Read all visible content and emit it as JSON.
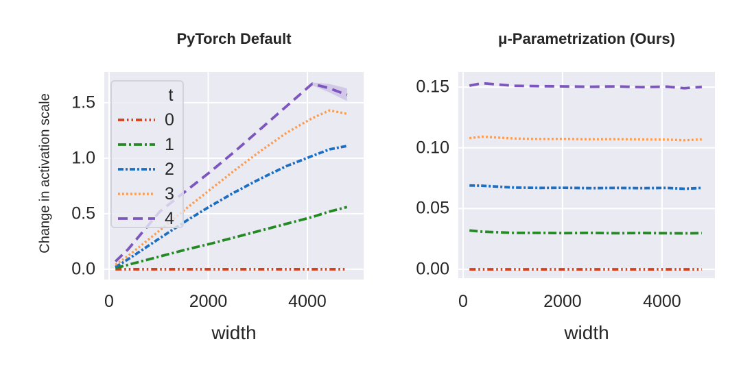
{
  "styles": {
    "page_bg": "#ffffff",
    "plot_bg": "#eaeaf2",
    "grid_color": "#ffffff",
    "text_color": "#262626",
    "band_color": "rgba(125,85,190,0.22)"
  },
  "chart_data": [
    {
      "type": "line",
      "title": "PyTorch Default",
      "xlabel": "width",
      "ylabel": "Change in activation scale",
      "grid": true,
      "legend": {
        "title": "t",
        "position": "upper-left"
      },
      "xlim": [
        -97,
        5135
      ],
      "ylim": [
        -0.093,
        1.777
      ],
      "xticks": [
        0,
        2000,
        4000
      ],
      "xtick_labels": [
        "0",
        "2000",
        "4000"
      ],
      "yticks": [
        0.0,
        0.5,
        1.0,
        1.5
      ],
      "ytick_labels": [
        "0.0",
        "0.5",
        "1.0",
        "1.5"
      ],
      "x": [
        128,
        384,
        1024,
        1536,
        2048,
        2560,
        3072,
        3584,
        4096,
        4448,
        4800
      ],
      "series": [
        {
          "name": "0",
          "color": "#d2421e",
          "dash": "9 4 2.5 4 2.5 4",
          "lw": 3.8,
          "values": [
            0.0,
            0.0,
            0.0,
            0.0,
            0.0,
            0.0,
            0.0,
            0.0,
            0.0,
            0.0,
            0.0
          ]
        },
        {
          "name": "1",
          "color": "#238a23",
          "dash": "12 4 3 4",
          "lw": 3.8,
          "values": [
            0.01,
            0.04,
            0.115,
            0.175,
            0.23,
            0.29,
            0.35,
            0.41,
            0.47,
            0.52,
            0.56
          ]
        },
        {
          "name": "2",
          "color": "#1b6ec2",
          "dash": "8 3 3 3",
          "lw": 3.8,
          "values": [
            0.02,
            0.09,
            0.28,
            0.43,
            0.57,
            0.7,
            0.82,
            0.93,
            1.02,
            1.08,
            1.11
          ]
        },
        {
          "name": "3",
          "color": "#fb9b50",
          "dash": "2.8 3.2",
          "lw": 3.4,
          "values": [
            0.04,
            0.12,
            0.35,
            0.54,
            0.72,
            0.9,
            1.07,
            1.23,
            1.36,
            1.43,
            1.4
          ]
        },
        {
          "name": "4",
          "color": "#7d55be",
          "dash": "14 8",
          "lw": 3.8,
          "values": [
            0.07,
            0.18,
            0.52,
            0.7,
            0.88,
            1.07,
            1.27,
            1.47,
            1.67,
            1.63,
            1.57
          ]
        }
      ],
      "band": {
        "series": "4",
        "x": [
          4096,
          4448,
          4800
        ],
        "upper": [
          1.683,
          1.668,
          1.63
        ],
        "lower": [
          1.657,
          1.592,
          1.515
        ]
      }
    },
    {
      "type": "line",
      "title": "μ-Parametrization (Ours)",
      "xlabel": "width",
      "ylabel": "",
      "grid": true,
      "legend": null,
      "xlim": [
        -96,
        5064
      ],
      "ylim": [
        -0.0073,
        0.1625
      ],
      "xticks": [
        0,
        2000,
        4000
      ],
      "xtick_labels": [
        "0",
        "2000",
        "4000"
      ],
      "yticks": [
        0.0,
        0.05,
        0.1,
        0.15
      ],
      "ytick_labels": [
        "0.00",
        "0.05",
        "0.10",
        "0.15"
      ],
      "x": [
        128,
        384,
        1024,
        1536,
        2048,
        2560,
        3072,
        3584,
        4096,
        4448,
        4800
      ],
      "series": [
        {
          "name": "0",
          "color": "#d2421e",
          "dash": "9 4 2.5 4 2.5 4",
          "lw": 3.8,
          "values": [
            0.0,
            0.0,
            0.0,
            0.0,
            0.0,
            0.0,
            0.0,
            0.0,
            0.0,
            0.0,
            0.0
          ]
        },
        {
          "name": "1",
          "color": "#238a23",
          "dash": "12 4 3 4",
          "lw": 3.8,
          "values": [
            0.032,
            0.031,
            0.03,
            0.03,
            0.0298,
            0.03,
            0.0297,
            0.0299,
            0.0297,
            0.0296,
            0.0298
          ]
        },
        {
          "name": "2",
          "color": "#1b6ec2",
          "dash": "8 3 3 3",
          "lw": 3.8,
          "values": [
            0.069,
            0.0688,
            0.0673,
            0.067,
            0.0671,
            0.0668,
            0.067,
            0.0668,
            0.067,
            0.0663,
            0.067
          ]
        },
        {
          "name": "3",
          "color": "#fb9b50",
          "dash": "2.8 3.2",
          "lw": 3.4,
          "values": [
            0.108,
            0.1092,
            0.1077,
            0.1073,
            0.1074,
            0.1071,
            0.1072,
            0.107,
            0.1068,
            0.1062,
            0.107
          ]
        },
        {
          "name": "4",
          "color": "#7d55be",
          "dash": "14 8",
          "lw": 3.8,
          "values": [
            0.1512,
            0.1532,
            0.1511,
            0.1508,
            0.1506,
            0.1503,
            0.1506,
            0.15,
            0.1504,
            0.1491,
            0.1502
          ]
        }
      ],
      "band": null
    }
  ]
}
